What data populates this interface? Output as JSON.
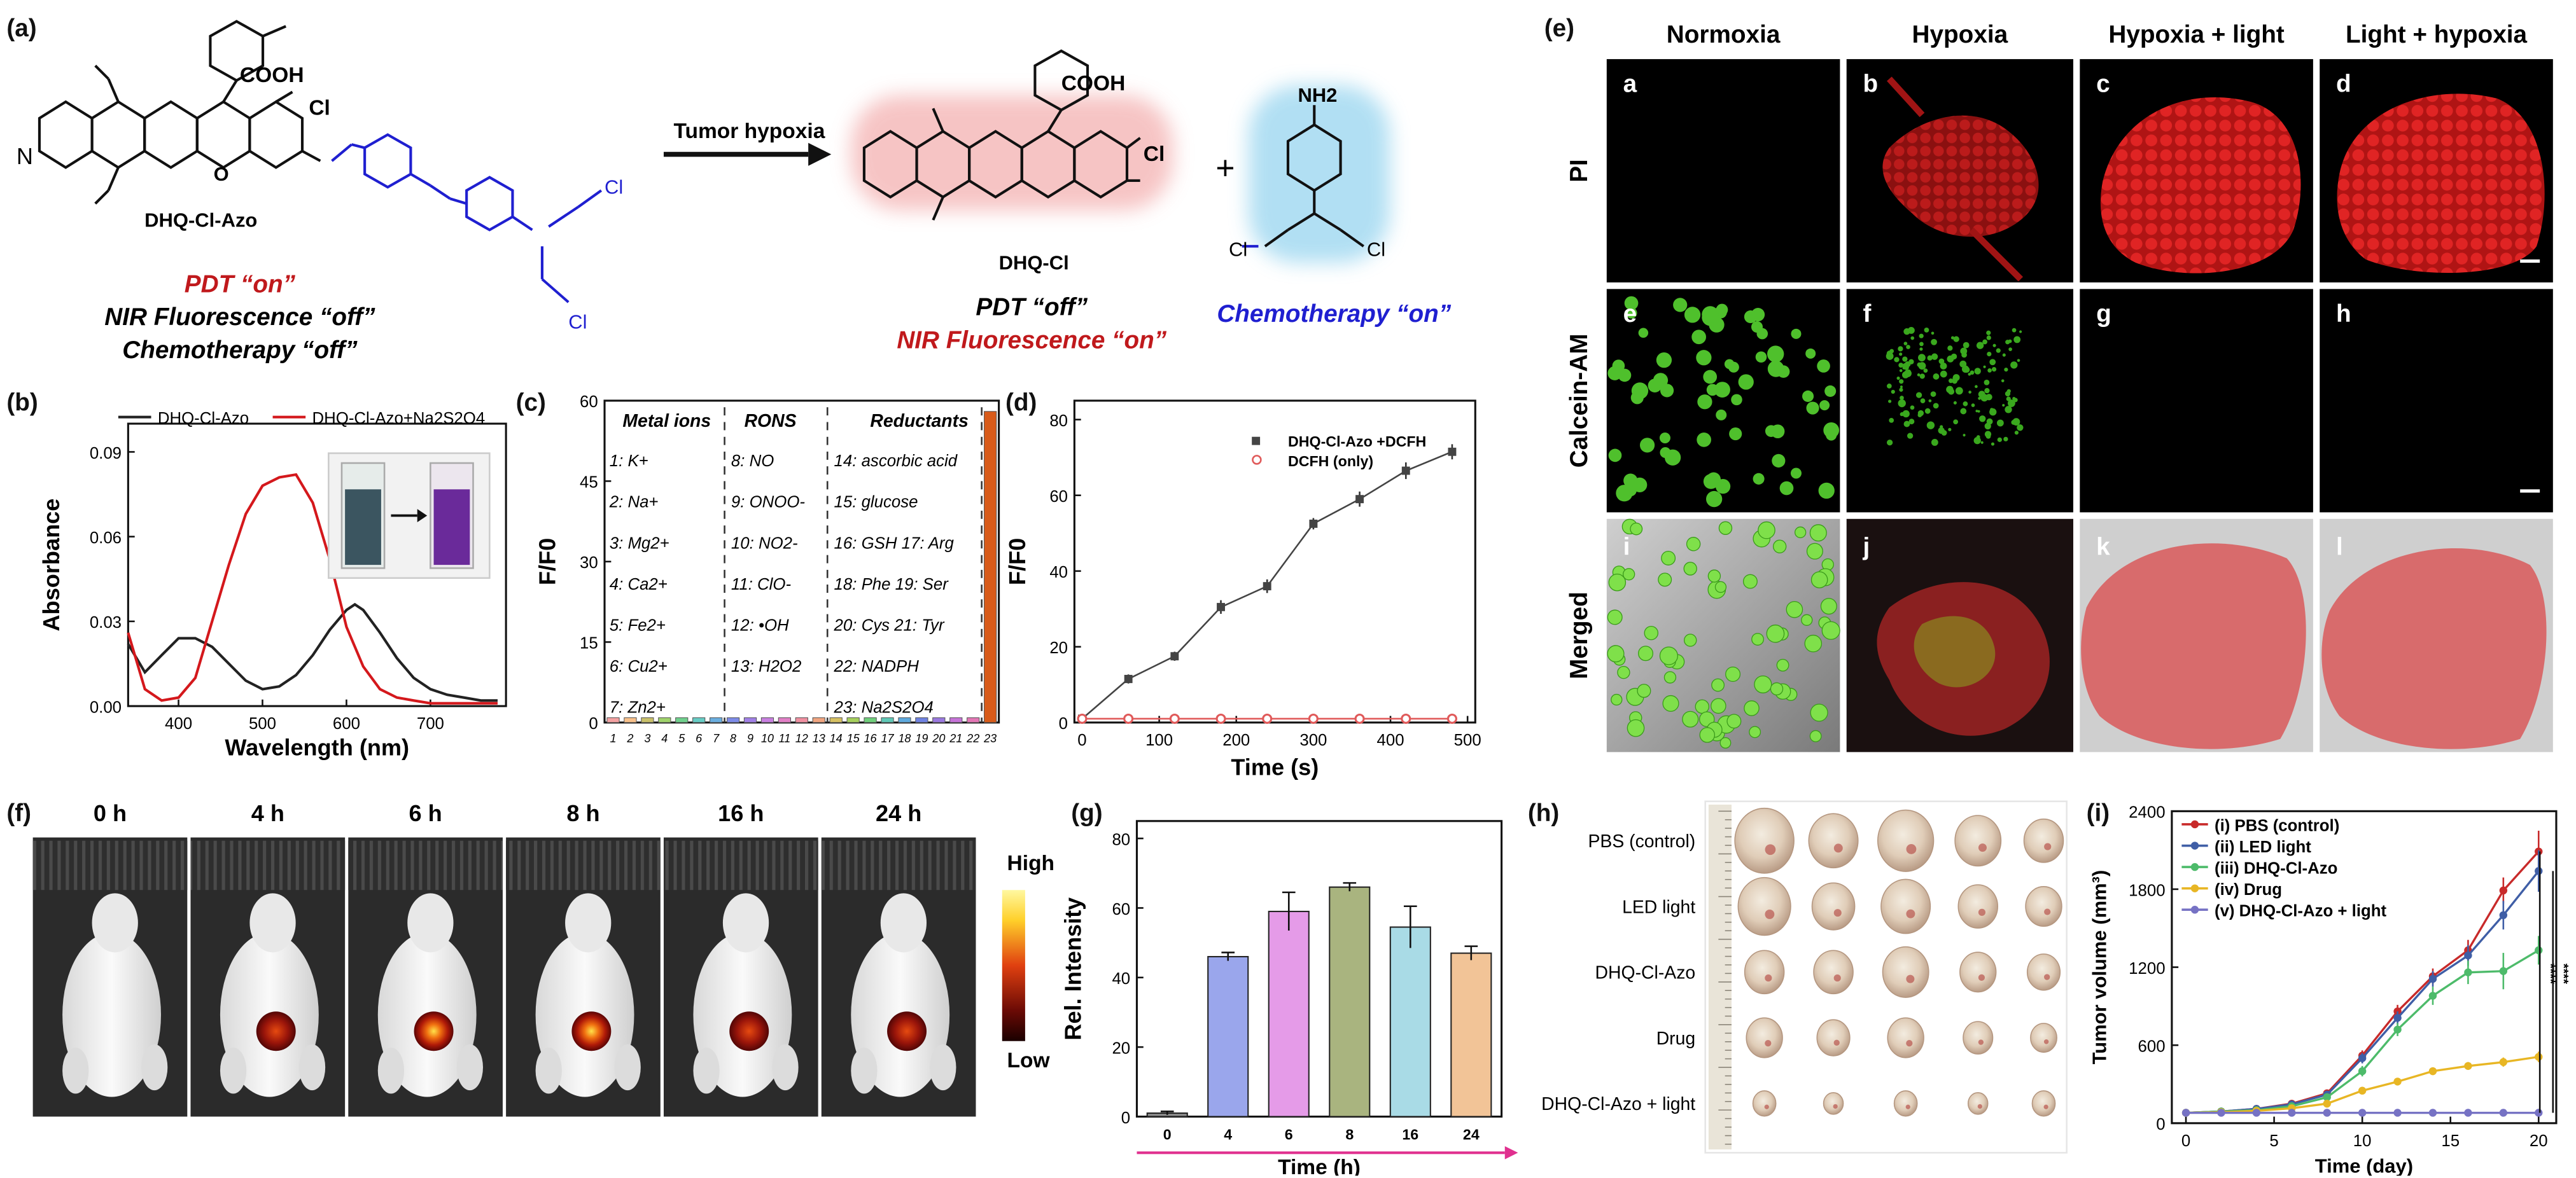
{
  "panel_tags": [
    "(a)",
    "(b)",
    "(c)",
    "(d)",
    "(e)",
    "(f)",
    "(g)",
    "(h)",
    "(i)"
  ],
  "scheme": {
    "compound": "DHQ-Cl-Azo",
    "product": "DHQ-Cl",
    "carboxyl": "COOH",
    "cl": "Cl",
    "o_plus": "O",
    "amine": "NH2",
    "arrow_label": "Tumor hypoxia",
    "plus": "+",
    "left_lines": [
      "PDT “on”",
      "NIR Fluorescence “off”",
      "Chemotherapy “off”"
    ],
    "mid_lines": [
      "PDT “off”",
      "NIR Fluorescence “on”"
    ],
    "right_line": "Chemotherapy “on”",
    "colors": {
      "red": "#c0191c",
      "blue": "#1f1fd0",
      "glow_red": "#f4b6b6",
      "glow_blue": "#a9dcf2"
    }
  },
  "panel_b_legend": [
    "DHQ-Cl-Azo",
    "DHQ-Cl-Azo+Na2S2O4"
  ],
  "panel_c_groups": [
    "Metal ions",
    "RONS",
    "Reductants"
  ],
  "panel_c_items": [
    [
      "1: K+",
      "2: Na+",
      "3: Mg2+",
      "4: Ca2+",
      "5: Fe2+",
      "6: Cu2+",
      "7: Zn2+"
    ],
    [
      "8: NO",
      "9: ONOO-",
      "10: NO2-",
      "11: ClO-",
      "12: •OH",
      "13: H2O2"
    ],
    [
      "14: ascorbic acid",
      "15: glucose",
      "16: GSH 17: Arg",
      "18: Phe 19: Ser",
      "20: Cys 21: Tyr",
      "22: NADPH",
      "23: Na2S2O4"
    ]
  ],
  "micro": {
    "columns": [
      "Normoxia",
      "Hypoxia",
      "Hypoxia + light",
      "Light + hypoxia"
    ],
    "rows": [
      "PI",
      "Calcein-AM",
      "Merged"
    ],
    "letters": [
      "a",
      "b",
      "c",
      "d",
      "e",
      "f",
      "g",
      "h",
      "i",
      "j",
      "k",
      "l"
    ]
  },
  "imaging": {
    "times": [
      "0 h",
      "4 h",
      "6 h",
      "8 h",
      "16 h",
      "24 h"
    ],
    "scale_high": "High",
    "scale_low": "Low"
  },
  "tumors": {
    "rows": [
      "PBS (control)",
      "LED light",
      "DHQ-Cl-Azo",
      "Drug",
      "DHQ-Cl-Azo + light"
    ]
  },
  "chart_data": [
    {
      "panel": "b",
      "type": "line",
      "xlabel": "Wavelength (nm)",
      "ylabel": "Absorbance",
      "xlim": [
        340,
        790
      ],
      "ylim": [
        0,
        0.1
      ],
      "xticks": [
        400,
        500,
        600,
        700
      ],
      "yticks": [
        0,
        0.03,
        0.06,
        0.09
      ],
      "series": [
        {
          "name": "DHQ-Cl-Azo",
          "color": "#222222",
          "x": [
            340,
            360,
            380,
            400,
            420,
            440,
            460,
            480,
            500,
            520,
            540,
            560,
            580,
            600,
            610,
            620,
            640,
            660,
            680,
            700,
            720,
            740,
            760,
            780
          ],
          "y": [
            0.022,
            0.012,
            0.018,
            0.024,
            0.024,
            0.021,
            0.015,
            0.009,
            0.006,
            0.007,
            0.011,
            0.018,
            0.027,
            0.034,
            0.036,
            0.034,
            0.026,
            0.017,
            0.01,
            0.006,
            0.004,
            0.003,
            0.002,
            0.002
          ]
        },
        {
          "name": "DHQ-Cl-Azo+Na2S2O4",
          "color": "#d4181c",
          "x": [
            340,
            360,
            380,
            400,
            420,
            440,
            460,
            480,
            500,
            520,
            540,
            560,
            580,
            600,
            620,
            640,
            660,
            680,
            700,
            720,
            740,
            760,
            780
          ],
          "y": [
            0.026,
            0.006,
            0.002,
            0.003,
            0.01,
            0.03,
            0.05,
            0.068,
            0.078,
            0.081,
            0.082,
            0.072,
            0.052,
            0.028,
            0.014,
            0.006,
            0.003,
            0.002,
            0.001,
            0.001,
            0.001,
            0.001,
            0.001
          ]
        }
      ]
    },
    {
      "panel": "c",
      "type": "bar",
      "xlabel": "",
      "ylabel": "F/F0",
      "ylim": [
        0,
        60
      ],
      "yticks": [
        0,
        15,
        30,
        45,
        60
      ],
      "categories": [
        "1",
        "2",
        "3",
        "4",
        "5",
        "6",
        "7",
        "8",
        "9",
        "10",
        "11",
        "12",
        "13",
        "14",
        "15",
        "16",
        "17",
        "18",
        "19",
        "20",
        "21",
        "22",
        "23"
      ],
      "values": [
        0.9,
        0.9,
        0.9,
        0.9,
        0.9,
        0.9,
        0.9,
        0.9,
        0.9,
        0.9,
        0.9,
        0.9,
        0.9,
        0.9,
        0.9,
        0.9,
        0.9,
        0.9,
        0.9,
        0.9,
        0.9,
        0.9,
        58
      ],
      "colors": [
        "#f4a1a1",
        "#f8c08a",
        "#c9c06a",
        "#9fd36b",
        "#6fd08c",
        "#66ccc4",
        "#6aaee0",
        "#7d8be8",
        "#a07fe6",
        "#c87fe0",
        "#e27fc6",
        "#f08fa0",
        "#f0a47f",
        "#d6c062",
        "#a6d05c",
        "#6fcf7b",
        "#5fc8b6",
        "#5ea9de",
        "#6f82e2",
        "#9a78df",
        "#c673d8",
        "#e476b5",
        "#d85b1a"
      ]
    },
    {
      "panel": "d",
      "type": "line",
      "xlabel": "Time (s)",
      "ylabel": "F/F0",
      "xlim": [
        -10,
        510
      ],
      "ylim": [
        0,
        85
      ],
      "xticks": [
        0,
        100,
        200,
        300,
        400,
        500
      ],
      "yticks": [
        0,
        20,
        40,
        60,
        80
      ],
      "series": [
        {
          "name": "DHQ-Cl-Azo +DCFH",
          "color": "#444444",
          "x": [
            0,
            60,
            120,
            180,
            240,
            300,
            360,
            420,
            480
          ],
          "y": [
            1,
            11.5,
            17.5,
            30.5,
            36,
            52.5,
            59,
            66.5,
            71.5
          ],
          "err": [
            0.5,
            1.2,
            1.2,
            1.8,
            1.8,
            1.5,
            2,
            2.2,
            2
          ]
        },
        {
          "name": "DCFH (only)",
          "color": "#e05a5a",
          "x": [
            0,
            60,
            120,
            180,
            240,
            300,
            360,
            420,
            480
          ],
          "y": [
            1,
            1,
            1,
            1,
            1,
            1,
            1,
            1,
            1
          ],
          "err": [
            0,
            0,
            0,
            0,
            0,
            0,
            0,
            0,
            0
          ]
        }
      ]
    },
    {
      "panel": "g",
      "type": "bar",
      "xlabel": "Time (h)",
      "ylabel": "Rel. Intensity",
      "ylim": [
        0,
        85
      ],
      "yticks": [
        0,
        20,
        40,
        60,
        80
      ],
      "categories": [
        "0",
        "4",
        "6",
        "8",
        "16",
        "24"
      ],
      "values": [
        1,
        46,
        59,
        66,
        54.5,
        47
      ],
      "errors": [
        0.5,
        1.2,
        5.5,
        1.2,
        6,
        2
      ],
      "colors": [
        "#8c8c8c",
        "#9aa6ec",
        "#e59be8",
        "#a9b47f",
        "#a9dbe6",
        "#f2c497"
      ]
    },
    {
      "panel": "i",
      "type": "line",
      "xlabel": "Time (day)",
      "ylabel": "Tumor volume (mm³)",
      "xlim": [
        -0.8,
        21
      ],
      "ylim": [
        0,
        2400
      ],
      "xticks": [
        0,
        5,
        10,
        15,
        20
      ],
      "yticks": [
        0,
        600,
        1200,
        1800,
        2400
      ],
      "series": [
        {
          "name": "(i) PBS (control)",
          "color": "#c82a2a",
          "marker": "square",
          "x": [
            0,
            2,
            4,
            6,
            8,
            10,
            12,
            14,
            16,
            18,
            20
          ],
          "y": [
            80,
            90,
            110,
            150,
            230,
            520,
            860,
            1130,
            1330,
            1790,
            2090
          ],
          "err": [
            10,
            10,
            12,
            15,
            20,
            40,
            50,
            60,
            80,
            100,
            160
          ]
        },
        {
          "name": "(ii) LED light",
          "color": "#3f5ea6",
          "marker": "circle",
          "x": [
            0,
            2,
            4,
            6,
            8,
            10,
            12,
            14,
            16,
            18,
            20
          ],
          "y": [
            80,
            90,
            110,
            145,
            220,
            500,
            810,
            1110,
            1290,
            1600,
            1940
          ],
          "err": [
            10,
            10,
            12,
            15,
            20,
            40,
            50,
            60,
            80,
            110,
            160
          ]
        },
        {
          "name": "(iii) DHQ-Cl-Azo",
          "color": "#4dbb6a",
          "marker": "diamond",
          "x": [
            0,
            2,
            4,
            6,
            8,
            10,
            12,
            14,
            16,
            18,
            20
          ],
          "y": [
            80,
            90,
            100,
            130,
            200,
            400,
            720,
            980,
            1160,
            1170,
            1330
          ],
          "err": [
            10,
            10,
            12,
            15,
            20,
            40,
            50,
            70,
            90,
            140,
            110
          ]
        },
        {
          "name": "(iv) Drug",
          "color": "#e8b624",
          "marker": "triangle",
          "x": [
            0,
            2,
            4,
            6,
            8,
            10,
            12,
            14,
            16,
            18,
            20
          ],
          "y": [
            80,
            85,
            95,
            115,
            150,
            250,
            320,
            400,
            440,
            470,
            510
          ],
          "err": [
            10,
            10,
            10,
            12,
            15,
            20,
            25,
            30,
            30,
            35,
            40
          ]
        },
        {
          "name": "(v) DHQ-Cl-Azo + light",
          "color": "#7672c4",
          "marker": "diamond",
          "x": [
            0,
            2,
            4,
            6,
            8,
            10,
            12,
            14,
            16,
            18,
            20
          ],
          "y": [
            80,
            80,
            80,
            80,
            80,
            80,
            80,
            80,
            80,
            80,
            80
          ],
          "err": [
            5,
            5,
            5,
            5,
            5,
            5,
            5,
            5,
            5,
            5,
            5
          ]
        }
      ],
      "significance": [
        "****",
        "****"
      ]
    }
  ]
}
